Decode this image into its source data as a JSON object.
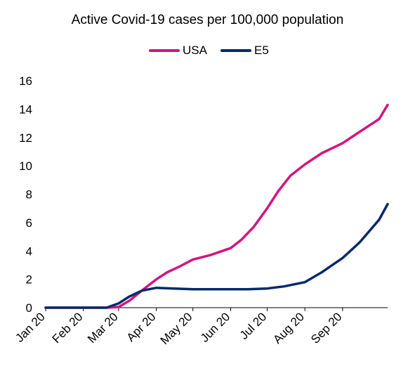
{
  "chart_data": {
    "type": "line",
    "title": "Active Covid-19 cases per 100,000 population",
    "xlabel": "",
    "ylabel": "",
    "ylim": [
      0,
      16
    ],
    "yticks": [
      0,
      2,
      4,
      6,
      8,
      10,
      12,
      14,
      16
    ],
    "x_tick_labels": [
      "Jan 20",
      "Feb 20",
      "Mar 20",
      "Apr 20",
      "May 20",
      "Jun 20",
      "Jul 20",
      "Aug 20",
      "Sep 20"
    ],
    "legend_position": "top-center",
    "grid": false,
    "series": [
      {
        "name": "USA",
        "color": "#d4147f",
        "points": [
          [
            "2020-01-01",
            0
          ],
          [
            "2020-02-01",
            0
          ],
          [
            "2020-02-20",
            0
          ],
          [
            "2020-03-01",
            0.05
          ],
          [
            "2020-03-10",
            0.5
          ],
          [
            "2020-03-20",
            1.2
          ],
          [
            "2020-04-01",
            2.0
          ],
          [
            "2020-04-10",
            2.5
          ],
          [
            "2020-04-20",
            2.9
          ],
          [
            "2020-05-01",
            3.4
          ],
          [
            "2020-05-15",
            3.7
          ],
          [
            "2020-06-01",
            4.2
          ],
          [
            "2020-06-10",
            4.8
          ],
          [
            "2020-06-20",
            5.7
          ],
          [
            "2020-07-01",
            7.0
          ],
          [
            "2020-07-10",
            8.2
          ],
          [
            "2020-07-20",
            9.3
          ],
          [
            "2020-08-01",
            10.1
          ],
          [
            "2020-08-15",
            10.9
          ],
          [
            "2020-09-01",
            11.6
          ],
          [
            "2020-09-15",
            12.4
          ],
          [
            "2020-10-01",
            13.3
          ],
          [
            "2020-10-08",
            14.3
          ]
        ]
      },
      {
        "name": "E5",
        "color": "#062a6b",
        "points": [
          [
            "2020-01-01",
            0
          ],
          [
            "2020-02-01",
            0
          ],
          [
            "2020-02-20",
            0
          ],
          [
            "2020-03-01",
            0.3
          ],
          [
            "2020-03-10",
            0.8
          ],
          [
            "2020-03-20",
            1.2
          ],
          [
            "2020-04-01",
            1.4
          ],
          [
            "2020-04-15",
            1.35
          ],
          [
            "2020-05-01",
            1.3
          ],
          [
            "2020-06-01",
            1.3
          ],
          [
            "2020-06-15",
            1.3
          ],
          [
            "2020-07-01",
            1.35
          ],
          [
            "2020-07-15",
            1.5
          ],
          [
            "2020-08-01",
            1.8
          ],
          [
            "2020-08-15",
            2.5
          ],
          [
            "2020-09-01",
            3.5
          ],
          [
            "2020-09-15",
            4.6
          ],
          [
            "2020-10-01",
            6.2
          ],
          [
            "2020-10-08",
            7.3
          ]
        ]
      }
    ]
  }
}
